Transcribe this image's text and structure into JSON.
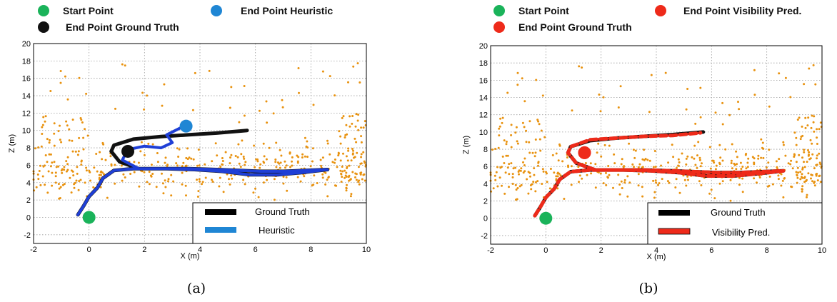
{
  "chart_data": [
    {
      "type": "scatter",
      "panel_label": "(a)",
      "xlabel": "X (m)",
      "ylabel": "Z (m)",
      "xlim": [
        -2,
        10
      ],
      "ylim": [
        -3,
        20
      ],
      "xticks": [
        -2,
        0,
        2,
        4,
        6,
        8,
        10
      ],
      "yticks": [
        -2,
        0,
        2,
        4,
        6,
        8,
        10,
        12,
        14,
        16,
        18,
        20
      ],
      "grid": true,
      "top_legend": [
        {
          "label": "Start Point",
          "color": "#1ab35a"
        },
        {
          "label": "End Point Heuristic",
          "color": "#1f86d4"
        },
        {
          "label": "End Point Ground Truth",
          "color": "#111111"
        }
      ],
      "legend_position": "bottom-right",
      "series": [
        {
          "name": "Ground Truth",
          "color": "#111111",
          "x": [
            -0.4,
            -0.2,
            0.0,
            0.3,
            0.5,
            0.9,
            1.6,
            2.6,
            3.6,
            4.6,
            5.4,
            6.2,
            7.0,
            7.8,
            8.6,
            7.8,
            6.8,
            5.8,
            4.8,
            3.8,
            2.8,
            1.8,
            1.1,
            0.8,
            0.9,
            1.6,
            2.6,
            3.6,
            4.6,
            5.7
          ],
          "y": [
            0.3,
            1.3,
            2.4,
            3.4,
            4.5,
            5.4,
            5.6,
            5.6,
            5.6,
            5.5,
            5.4,
            5.3,
            5.3,
            5.4,
            5.5,
            5.2,
            4.9,
            4.9,
            5.3,
            5.5,
            5.6,
            5.6,
            6.4,
            7.6,
            8.3,
            9.0,
            9.3,
            9.5,
            9.7,
            10.0
          ]
        },
        {
          "name": "Heuristic",
          "color": "#1f3fd6",
          "x": [
            -0.4,
            -0.2,
            0.0,
            0.3,
            0.5,
            0.9,
            1.6,
            2.6,
            3.6,
            4.6,
            5.4,
            6.2,
            7.0,
            7.8,
            8.6,
            7.8,
            6.8,
            5.8,
            4.8,
            3.8,
            2.8,
            1.8,
            1.2,
            1.4,
            2.0,
            2.6,
            3.0,
            2.8,
            3.3
          ],
          "y": [
            0.3,
            1.3,
            2.4,
            3.4,
            4.5,
            5.4,
            5.6,
            5.6,
            5.6,
            5.5,
            5.4,
            5.3,
            5.3,
            5.4,
            5.5,
            5.2,
            4.9,
            4.9,
            5.3,
            5.5,
            5.6,
            5.6,
            6.6,
            7.8,
            8.2,
            8.0,
            8.6,
            9.5,
            10.3
          ]
        }
      ],
      "markers": [
        {
          "role": "start",
          "x": 0.0,
          "y": 0.0,
          "color": "#1ab35a"
        },
        {
          "role": "end_ground_truth",
          "x": 1.4,
          "y": 7.6,
          "color": "#111111"
        },
        {
          "role": "end_estimate",
          "x": 3.5,
          "y": 10.5,
          "color": "#1f86d4"
        }
      ],
      "legend": [
        {
          "label": "Ground Truth",
          "color": "#000000"
        },
        {
          "label": "Heuristic",
          "color": "#1f86d4"
        }
      ]
    },
    {
      "type": "scatter",
      "panel_label": "(b)",
      "xlabel": "X (m)",
      "ylabel": "Z (m)",
      "xlim": [
        -2,
        10
      ],
      "ylim": [
        -3,
        20
      ],
      "xticks": [
        -2,
        0,
        2,
        4,
        6,
        8,
        10
      ],
      "yticks": [
        -2,
        0,
        2,
        4,
        6,
        8,
        10,
        12,
        14,
        16,
        18,
        20
      ],
      "grid": true,
      "top_legend": [
        {
          "label": "Start Point",
          "color": "#1ab35a"
        },
        {
          "label": "End Point Visibility Pred.",
          "color": "#ee2a1a"
        },
        {
          "label": "End Point Ground Truth",
          "color": "#ee2a1a"
        }
      ],
      "legend_position": "bottom-right",
      "series": [
        {
          "name": "Ground Truth",
          "color": "#111111",
          "x": [
            -0.4,
            -0.2,
            0.0,
            0.3,
            0.5,
            0.9,
            1.6,
            2.6,
            3.6,
            4.6,
            5.4,
            6.2,
            7.0,
            7.8,
            8.6,
            7.8,
            6.8,
            5.8,
            4.8,
            3.8,
            2.8,
            1.8,
            1.1,
            0.8,
            0.9,
            1.6,
            2.6,
            3.6,
            4.6,
            5.7
          ],
          "y": [
            0.3,
            1.3,
            2.4,
            3.4,
            4.5,
            5.4,
            5.6,
            5.6,
            5.6,
            5.5,
            5.4,
            5.3,
            5.3,
            5.4,
            5.5,
            5.2,
            4.9,
            4.9,
            5.3,
            5.5,
            5.6,
            5.6,
            6.4,
            7.6,
            8.3,
            9.0,
            9.3,
            9.5,
            9.7,
            10.0
          ]
        },
        {
          "name": "Visibility Pred.",
          "color": "#ee2a1a",
          "x": [
            -0.4,
            -0.2,
            0.0,
            0.3,
            0.5,
            0.9,
            1.6,
            2.6,
            3.6,
            4.6,
            5.4,
            6.2,
            7.0,
            7.8,
            8.6,
            7.8,
            6.8,
            5.8,
            4.8,
            3.8,
            2.8,
            1.8,
            1.1,
            0.8,
            0.9,
            1.6,
            2.6,
            3.6,
            4.6,
            5.6
          ],
          "y": [
            0.3,
            1.3,
            2.4,
            3.4,
            4.5,
            5.4,
            5.6,
            5.6,
            5.6,
            5.5,
            5.4,
            5.3,
            5.3,
            5.4,
            5.5,
            5.2,
            4.9,
            4.9,
            5.3,
            5.5,
            5.6,
            5.6,
            6.4,
            7.6,
            8.3,
            9.1,
            9.3,
            9.5,
            9.6,
            9.9
          ]
        }
      ],
      "markers": [
        {
          "role": "start",
          "x": 0.0,
          "y": 0.0,
          "color": "#1ab35a"
        },
        {
          "role": "end_ground_truth",
          "x": 1.4,
          "y": 7.6,
          "color": "#ee2a1a"
        },
        {
          "role": "end_estimate",
          "x": 1.4,
          "y": 7.6,
          "color": "#ee2a1a"
        }
      ],
      "legend": [
        {
          "label": "Ground Truth",
          "color": "#000000"
        },
        {
          "label": "Visibility Pred.",
          "color": "#ee2a1a"
        }
      ]
    }
  ]
}
